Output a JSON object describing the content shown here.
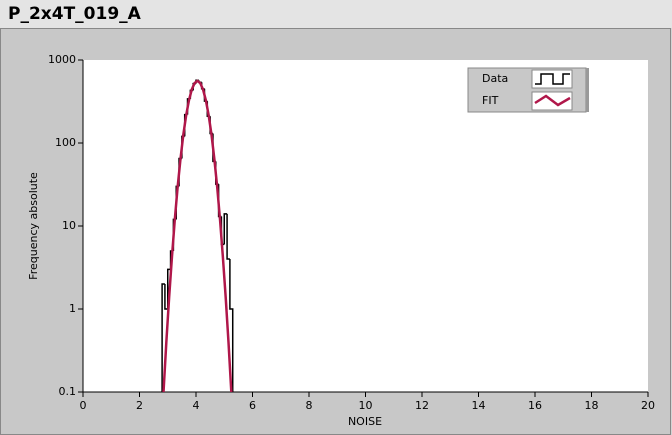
{
  "chart_data": {
    "type": "histogram",
    "title": "P_2x4T_019_A",
    "xlabel": "NOISE",
    "ylabel": "Frequency absolute",
    "xlim": [
      0,
      20
    ],
    "xticks": [
      0,
      2,
      4,
      6,
      8,
      10,
      12,
      14,
      16,
      18,
      20
    ],
    "ylim": [
      0.1,
      1000
    ],
    "yticks": [
      0.1,
      1,
      10,
      100,
      1000
    ],
    "log_y": true,
    "legend": "top-right",
    "series": [
      {
        "name": "Data",
        "type": "histogram",
        "color": "#000000",
        "bins": [
          2.8,
          2.9,
          3.0,
          3.1,
          3.2,
          3.3,
          3.4,
          3.5,
          3.6,
          3.7,
          3.8,
          3.9,
          4.0,
          4.1,
          4.2,
          4.3,
          4.4,
          4.5,
          4.6,
          4.7,
          4.8,
          4.9,
          5.0,
          5.1,
          5.2,
          5.3
        ],
        "counts": [
          2,
          1,
          3,
          5,
          12,
          30,
          65,
          120,
          220,
          340,
          430,
          520,
          570,
          540,
          450,
          320,
          210,
          130,
          60,
          32,
          13,
          6,
          14,
          4,
          1
        ]
      },
      {
        "name": "FIT",
        "type": "line",
        "color": "#b0174a",
        "x": [
          2.85,
          2.95,
          3.05,
          3.15,
          3.25,
          3.35,
          3.45,
          3.55,
          3.65,
          3.75,
          3.85,
          3.95,
          4.05,
          4.15,
          4.25,
          4.35,
          4.45,
          4.55,
          4.65,
          4.75,
          4.85,
          4.95,
          5.05,
          5.15,
          5.25
        ],
        "values": [
          0.1,
          0.4,
          1.4,
          4.3,
          12,
          29.5,
          64,
          125,
          214,
          326,
          441,
          527,
          560,
          527,
          441,
          326,
          214,
          125,
          64,
          29.5,
          12,
          4.3,
          1.4,
          0.4,
          0.1
        ]
      }
    ]
  }
}
